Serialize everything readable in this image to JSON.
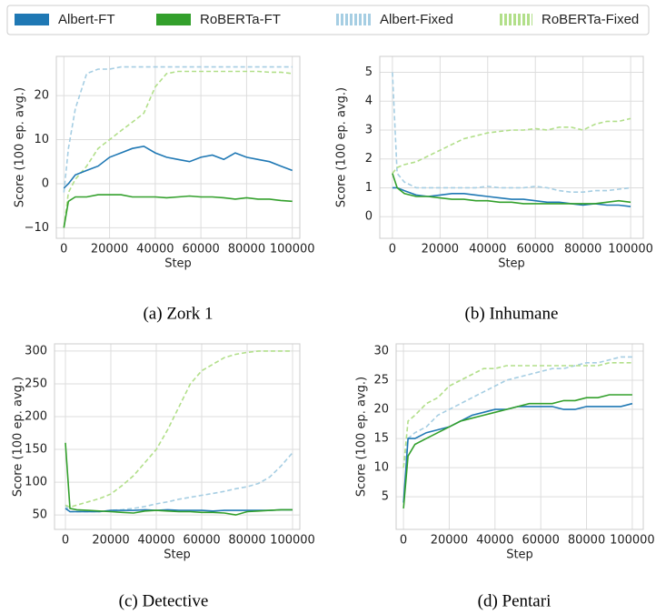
{
  "chart_data": [
    {
      "type": "line",
      "title": "(a) Zork 1",
      "xlabel": "Step",
      "ylabel": "Score (100 ep. avg.)",
      "grid": true,
      "x": [
        0,
        2000,
        5000,
        10000,
        15000,
        20000,
        25000,
        30000,
        35000,
        40000,
        45000,
        50000,
        55000,
        60000,
        65000,
        70000,
        75000,
        80000,
        85000,
        90000,
        95000,
        100000
      ],
      "xlim": [
        -3300,
        103300
      ],
      "ylim": [
        -12.4,
        28.9
      ],
      "xticks": [
        0,
        20000,
        40000,
        60000,
        80000,
        100000
      ],
      "yticks": [
        {
          "value": -10,
          "label": "−10"
        },
        0,
        10,
        20
      ],
      "series": [
        {
          "name": "Albert-FT",
          "color": "#1f78b4",
          "dashed": false,
          "values": [
            -1,
            0,
            2,
            3,
            4,
            6,
            7,
            8,
            8.5,
            7,
            6,
            5.5,
            5,
            6,
            6.5,
            5.5,
            7,
            6,
            5.5,
            5,
            4,
            3
          ]
        },
        {
          "name": "RoBERTa-FT",
          "color": "#33a02c",
          "dashed": false,
          "values": [
            -10,
            -4,
            -3,
            -3,
            -2.5,
            -2.5,
            -2.5,
            -3,
            -3,
            -3,
            -3.2,
            -3,
            -2.8,
            -3,
            -3,
            -3.2,
            -3.5,
            -3.2,
            -3.5,
            -3.5,
            -3.8,
            -4
          ]
        },
        {
          "name": "Albert-Fixed",
          "color": "#a6cee3",
          "dashed": true,
          "values": [
            -2,
            8,
            17,
            25,
            26,
            26,
            26.5,
            26.5,
            26.5,
            26.5,
            26.5,
            26.5,
            26.5,
            26.5,
            26.5,
            26.5,
            26.5,
            26.5,
            26.5,
            26.5,
            26.5,
            26.5
          ]
        },
        {
          "name": "RoBERTa-Fixed",
          "color": "#b2df8a",
          "dashed": true,
          "values": [
            -10,
            -2,
            1,
            4,
            8,
            10,
            12,
            14,
            16,
            22,
            25,
            25.5,
            25.5,
            25.5,
            25.5,
            25.5,
            25.5,
            25.5,
            25.5,
            25.3,
            25.3,
            25
          ]
        }
      ]
    },
    {
      "type": "line",
      "title": "(b) Inhumane",
      "xlabel": "Step",
      "ylabel": "Score (100 ep. avg.)",
      "grid": true,
      "x": [
        0,
        2000,
        5000,
        10000,
        15000,
        20000,
        25000,
        30000,
        35000,
        40000,
        45000,
        50000,
        55000,
        60000,
        65000,
        70000,
        75000,
        80000,
        85000,
        90000,
        95000,
        100000
      ],
      "xlim": [
        -5300,
        105300
      ],
      "ylim": [
        -0.75,
        5.55
      ],
      "xticks": [
        0,
        20000,
        40000,
        60000,
        80000,
        100000
      ],
      "yticks": [
        0,
        1,
        2,
        3,
        4,
        5
      ],
      "series": [
        {
          "values": [
            1,
            1.0,
            0.9,
            0.75,
            0.7,
            0.75,
            0.8,
            0.8,
            0.75,
            0.7,
            0.65,
            0.6,
            0.6,
            0.55,
            0.5,
            0.5,
            0.45,
            0.4,
            0.45,
            0.4,
            0.4,
            0.35
          ]
        },
        {
          "values": [
            1.5,
            1.0,
            0.8,
            0.7,
            0.7,
            0.65,
            0.6,
            0.6,
            0.55,
            0.55,
            0.5,
            0.5,
            0.45,
            0.45,
            0.45,
            0.45,
            0.45,
            0.45,
            0.45,
            0.5,
            0.55,
            0.5
          ]
        },
        {
          "values": [
            5,
            1.5,
            1.2,
            1.0,
            1.0,
            1.0,
            1.0,
            1.0,
            1.0,
            1.05,
            1.0,
            1.0,
            1.0,
            1.05,
            1.0,
            0.9,
            0.85,
            0.85,
            0.9,
            0.9,
            0.95,
            1.0
          ]
        },
        {
          "values": [
            1.5,
            1.7,
            1.8,
            1.9,
            2.1,
            2.3,
            2.5,
            2.7,
            2.8,
            2.9,
            2.95,
            3.0,
            3.0,
            3.05,
            3.0,
            3.1,
            3.1,
            3.0,
            3.2,
            3.3,
            3.3,
            3.4
          ]
        }
      ]
    },
    {
      "type": "line",
      "title": "(c) Detective",
      "xlabel": "Step",
      "ylabel": "Score (100 ep. avg.)",
      "grid": true,
      "x": [
        0,
        2000,
        5000,
        10000,
        15000,
        20000,
        25000,
        30000,
        35000,
        40000,
        45000,
        50000,
        55000,
        60000,
        65000,
        70000,
        75000,
        80000,
        85000,
        90000,
        95000,
        100000
      ],
      "xlim": [
        -4800,
        103200
      ],
      "ylim": [
        28,
        311
      ],
      "xticks": [
        0,
        20000,
        40000,
        60000,
        80000,
        100000
      ],
      "yticks": [
        50,
        100,
        150,
        200,
        250,
        300
      ],
      "series": [
        {
          "values": [
            60,
            55,
            55,
            55,
            55,
            57,
            57,
            57,
            58,
            57,
            58,
            57,
            57,
            57,
            56,
            57,
            57,
            57,
            57,
            57,
            58,
            58
          ]
        },
        {
          "values": [
            160,
            60,
            58,
            57,
            56,
            55,
            54,
            53,
            56,
            57,
            56,
            55,
            55,
            54,
            54,
            53,
            50,
            55,
            56,
            57,
            58,
            58
          ]
        },
        {
          "values": [
            65,
            55,
            55,
            55,
            55,
            57,
            58,
            60,
            63,
            67,
            70,
            74,
            77,
            80,
            83,
            86,
            90,
            93,
            98,
            108,
            125,
            145
          ]
        },
        {
          "values": [
            65,
            62,
            65,
            70,
            75,
            82,
            95,
            110,
            130,
            150,
            180,
            215,
            250,
            270,
            280,
            290,
            295,
            298,
            300,
            300,
            300,
            300
          ]
        }
      ]
    },
    {
      "type": "line",
      "title": "(d) Pentari",
      "xlabel": "Step",
      "ylabel": "Score (100 ep. avg.)",
      "grid": true,
      "x": [
        0,
        2000,
        5000,
        10000,
        15000,
        20000,
        25000,
        30000,
        35000,
        40000,
        45000,
        50000,
        55000,
        60000,
        65000,
        70000,
        75000,
        80000,
        85000,
        90000,
        95000,
        100000
      ],
      "xlim": [
        -3200,
        104800
      ],
      "ylim": [
        -0.6,
        31.25
      ],
      "xticks": [
        0,
        20000,
        40000,
        60000,
        80000,
        100000
      ],
      "yticks": [
        5,
        10,
        15,
        20,
        25,
        30
      ],
      "series": [
        {
          "values": [
            4,
            15,
            15,
            16,
            16.5,
            17,
            18,
            19,
            19.5,
            20,
            20,
            20.5,
            20.5,
            20.5,
            20.5,
            20,
            20,
            20.5,
            20.5,
            20.5,
            20.5,
            21
          ]
        },
        {
          "values": [
            3,
            12,
            14,
            15,
            16,
            17,
            18,
            18.5,
            19,
            19.5,
            20,
            20.5,
            21,
            21,
            21,
            21.5,
            21.5,
            22,
            22,
            22.5,
            22.5,
            22.5
          ]
        },
        {
          "values": [
            10,
            15,
            16,
            17,
            19,
            20,
            21,
            22,
            23,
            24,
            25,
            25.5,
            26,
            26.5,
            27,
            27,
            27.5,
            28,
            28,
            28.5,
            29,
            29
          ]
        },
        {
          "values": [
            10,
            18,
            19,
            21,
            22,
            24,
            25,
            26,
            27,
            27,
            27.5,
            27.5,
            27.5,
            27.5,
            27.5,
            27.5,
            27.5,
            27.5,
            27.5,
            28,
            28,
            28
          ]
        }
      ]
    }
  ]
}
